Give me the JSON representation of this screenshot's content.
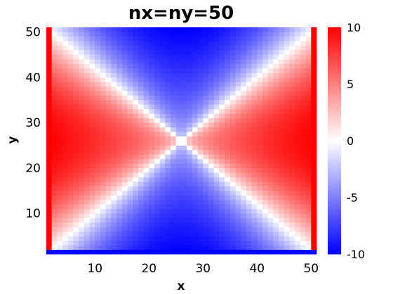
{
  "chart_data": {
    "type": "heatmap",
    "title": "nx=ny=50",
    "xlabel": "x",
    "ylabel": "y",
    "nx": 50,
    "ny": 50,
    "xlim": [
      1,
      51
    ],
    "ylim": [
      1,
      51
    ],
    "x_ticks": [
      10,
      20,
      30,
      40,
      50
    ],
    "y_ticks": [
      10,
      20,
      30,
      40,
      50
    ],
    "colorbar": {
      "range": [
        -10,
        10
      ],
      "ticks": [
        10,
        5,
        0,
        -5,
        -10
      ],
      "colors": {
        "low": "#0000ff",
        "mid": "#ffffff",
        "high": "#ff0000"
      }
    },
    "field_description_values": {
      "left_right_edges": 10,
      "bottom_edge": -10,
      "top_edge": -10,
      "diagonals": 0,
      "center": 0
    }
  }
}
